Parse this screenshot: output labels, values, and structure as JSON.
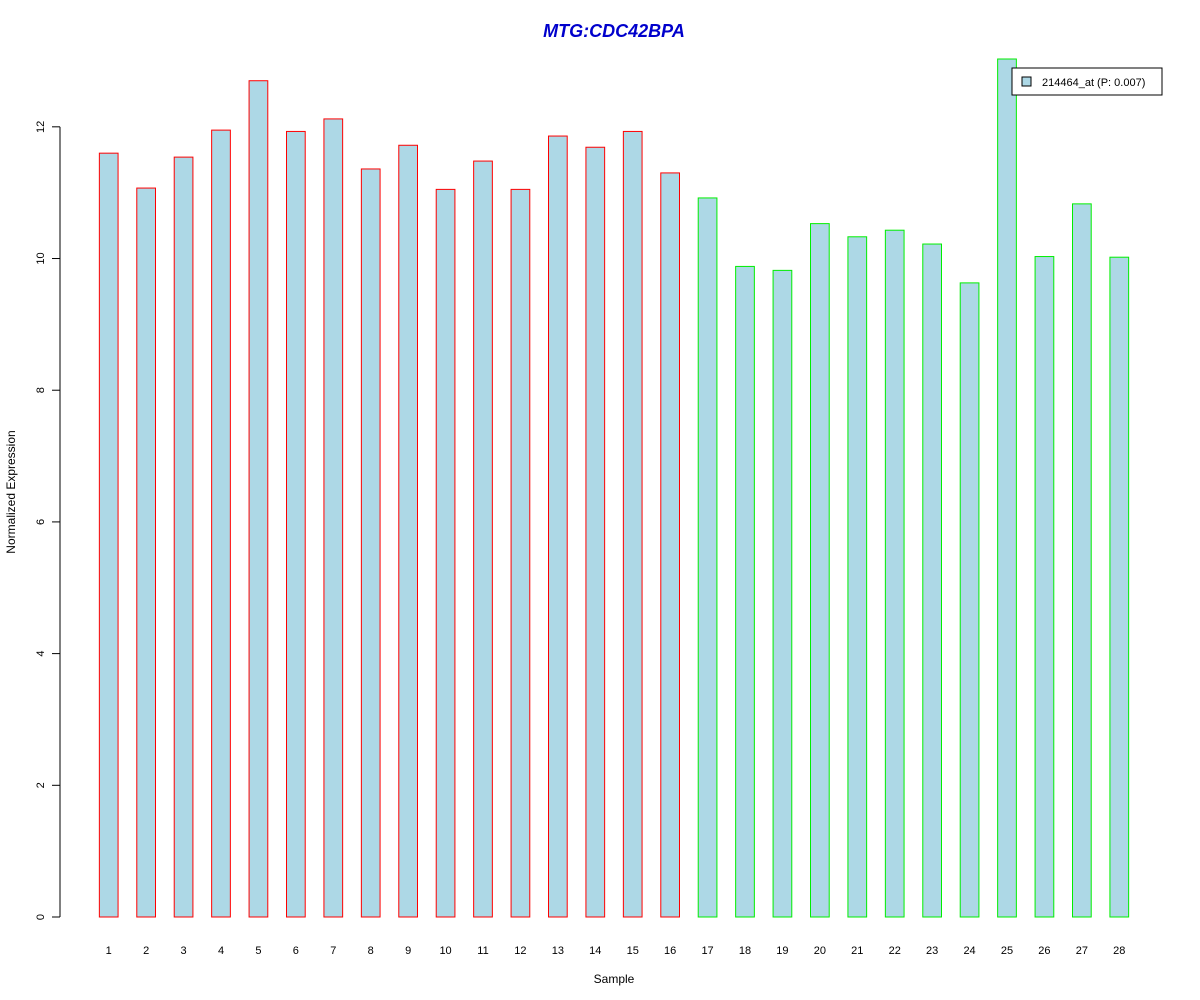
{
  "chart_data": {
    "type": "bar",
    "title": "MTG:CDC42BPA",
    "xlabel": "Sample",
    "ylabel": "Normalized Expression",
    "categories": [
      "1",
      "2",
      "3",
      "4",
      "5",
      "6",
      "7",
      "8",
      "9",
      "10",
      "11",
      "12",
      "13",
      "14",
      "15",
      "16",
      "17",
      "18",
      "19",
      "20",
      "21",
      "22",
      "23",
      "24",
      "25",
      "26",
      "27",
      "28"
    ],
    "values": [
      11.6,
      11.07,
      11.54,
      11.95,
      12.7,
      11.93,
      12.12,
      11.36,
      11.72,
      11.05,
      11.48,
      11.05,
      11.86,
      11.69,
      11.93,
      11.3,
      10.92,
      9.88,
      9.82,
      10.53,
      10.33,
      10.43,
      10.22,
      9.63,
      13.03,
      10.03,
      10.83,
      10.02
    ],
    "group_colors": [
      "#ff0000",
      "#ff0000",
      "#ff0000",
      "#ff0000",
      "#ff0000",
      "#ff0000",
      "#ff0000",
      "#ff0000",
      "#ff0000",
      "#ff0000",
      "#ff0000",
      "#ff0000",
      "#ff0000",
      "#ff0000",
      "#ff0000",
      "#ff0000",
      "#00ee00",
      "#00ee00",
      "#00ee00",
      "#00ee00",
      "#00ee00",
      "#00ee00",
      "#00ee00",
      "#00ee00",
      "#00ee00",
      "#00ee00",
      "#00ee00",
      "#00ee00"
    ],
    "bar_fill": "#add8e6",
    "title_color": "#0000cc",
    "yticks": [
      0,
      2,
      4,
      6,
      8,
      10,
      12
    ],
    "ylim": [
      0,
      13.03
    ],
    "grid": false,
    "legend": {
      "position": "top-right",
      "entries": [
        {
          "label": "214464_at (P: 0.007)",
          "color": "#add8e6"
        }
      ]
    }
  }
}
